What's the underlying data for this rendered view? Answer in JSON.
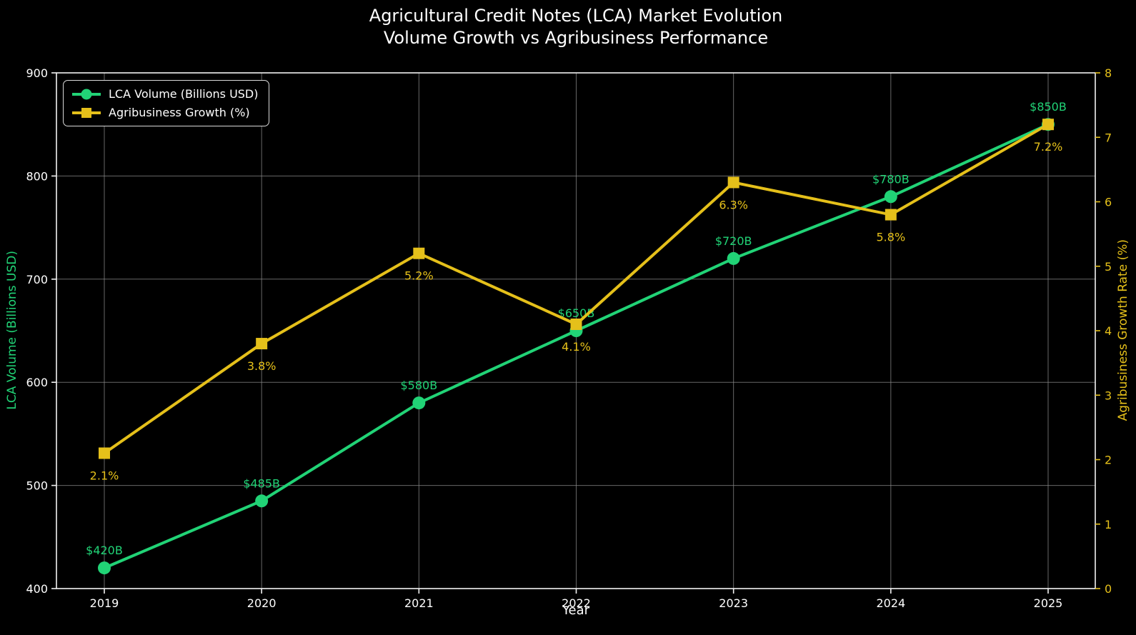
{
  "title": {
    "line1": "Agricultural Credit Notes (LCA) Market Evolution",
    "line2": "Volume Growth vs Agribusiness Performance"
  },
  "colors": {
    "background": "#000000",
    "text": "#ffffff",
    "grid": "#8a8a8a",
    "spine": "#f2f2f2",
    "green": "#21d376",
    "gold": "#e5c01a"
  },
  "chart_data": {
    "type": "line",
    "x": [
      "2019",
      "2020",
      "2021",
      "2022",
      "2023",
      "2024",
      "2025"
    ],
    "xlabel": "Year",
    "grid": true,
    "legend_position": "upper-left",
    "series": [
      {
        "name": "LCA Volume (Billions USD)",
        "axis": "left",
        "color": "#21d376",
        "marker": "circle",
        "values": [
          420,
          485,
          580,
          650,
          720,
          780,
          850
        ],
        "point_labels": [
          "$420B",
          "$485B",
          "$580B",
          "$650B",
          "$720B",
          "$780B",
          "$850B"
        ],
        "label_position": "above"
      },
      {
        "name": "Agribusiness Growth (%)",
        "axis": "right",
        "color": "#e5c01a",
        "marker": "square",
        "values": [
          2.1,
          3.8,
          5.2,
          4.1,
          6.3,
          5.8,
          7.2
        ],
        "point_labels": [
          "2.1%",
          "3.8%",
          "5.2%",
          "4.1%",
          "6.3%",
          "5.8%",
          "7.2%"
        ],
        "label_position": "below"
      }
    ],
    "left_axis": {
      "label": "LCA Volume (Billions USD)",
      "ticks": [
        400,
        500,
        600,
        700,
        800,
        900
      ],
      "range": [
        400,
        900
      ],
      "label_color": "#21d376",
      "tick_color": "#ffffff"
    },
    "right_axis": {
      "label": "Agribusiness Growth Rate (%)",
      "ticks": [
        0,
        1,
        2,
        3,
        4,
        5,
        6,
        7,
        8
      ],
      "range": [
        0,
        8
      ],
      "label_color": "#e5c01a",
      "tick_color": "#e5c01a"
    }
  }
}
